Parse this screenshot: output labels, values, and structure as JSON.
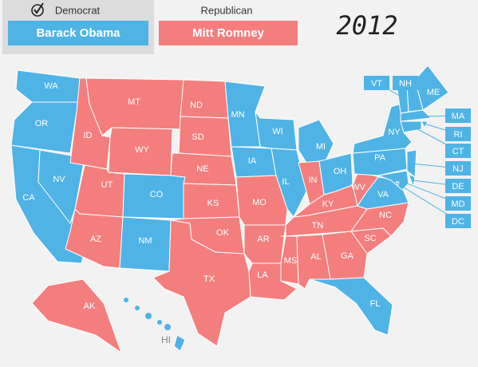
{
  "year": "2012",
  "parties": [
    {
      "label": "Democrat",
      "candidate": "Barack Obama",
      "color": "#4fb3e6"
    },
    {
      "label": "Republican",
      "candidate": "Mitt Romney",
      "color": "#f47e7e"
    }
  ],
  "states": [
    {
      "code": "WA",
      "winner": "Democrat"
    },
    {
      "code": "OR",
      "winner": "Democrat"
    },
    {
      "code": "CA",
      "winner": "Democrat"
    },
    {
      "code": "NV",
      "winner": "Democrat"
    },
    {
      "code": "ID",
      "winner": "Republican"
    },
    {
      "code": "MT",
      "winner": "Republican"
    },
    {
      "code": "WY",
      "winner": "Republican"
    },
    {
      "code": "UT",
      "winner": "Republican"
    },
    {
      "code": "CO",
      "winner": "Democrat"
    },
    {
      "code": "AZ",
      "winner": "Republican"
    },
    {
      "code": "NM",
      "winner": "Democrat"
    },
    {
      "code": "ND",
      "winner": "Republican"
    },
    {
      "code": "SD",
      "winner": "Republican"
    },
    {
      "code": "NE",
      "winner": "Republican"
    },
    {
      "code": "KS",
      "winner": "Republican"
    },
    {
      "code": "OK",
      "winner": "Republican"
    },
    {
      "code": "TX",
      "winner": "Republican"
    },
    {
      "code": "MN",
      "winner": "Democrat"
    },
    {
      "code": "IA",
      "winner": "Democrat"
    },
    {
      "code": "MO",
      "winner": "Republican"
    },
    {
      "code": "AR",
      "winner": "Republican"
    },
    {
      "code": "LA",
      "winner": "Republican"
    },
    {
      "code": "WI",
      "winner": "Democrat"
    },
    {
      "code": "IL",
      "winner": "Democrat"
    },
    {
      "code": "MS",
      "winner": "Republican"
    },
    {
      "code": "MI",
      "winner": "Democrat"
    },
    {
      "code": "IN",
      "winner": "Republican"
    },
    {
      "code": "KY",
      "winner": "Republican"
    },
    {
      "code": "TN",
      "winner": "Republican"
    },
    {
      "code": "AL",
      "winner": "Republican"
    },
    {
      "code": "OH",
      "winner": "Democrat"
    },
    {
      "code": "WV",
      "winner": "Republican"
    },
    {
      "code": "VA",
      "winner": "Democrat"
    },
    {
      "code": "NC",
      "winner": "Republican"
    },
    {
      "code": "SC",
      "winner": "Republican"
    },
    {
      "code": "GA",
      "winner": "Republican"
    },
    {
      "code": "FL",
      "winner": "Democrat"
    },
    {
      "code": "PA",
      "winner": "Democrat"
    },
    {
      "code": "NY",
      "winner": "Democrat"
    },
    {
      "code": "ME",
      "winner": "Democrat"
    },
    {
      "code": "VT",
      "winner": "Democrat"
    },
    {
      "code": "NH",
      "winner": "Democrat"
    },
    {
      "code": "MA",
      "winner": "Democrat"
    },
    {
      "code": "RI",
      "winner": "Democrat"
    },
    {
      "code": "CT",
      "winner": "Democrat"
    },
    {
      "code": "NJ",
      "winner": "Democrat"
    },
    {
      "code": "DE",
      "winner": "Democrat"
    },
    {
      "code": "MD",
      "winner": "Democrat"
    },
    {
      "code": "DC",
      "winner": "Democrat"
    },
    {
      "code": "AK",
      "winner": "Republican"
    },
    {
      "code": "HI",
      "winner": "Democrat"
    }
  ]
}
